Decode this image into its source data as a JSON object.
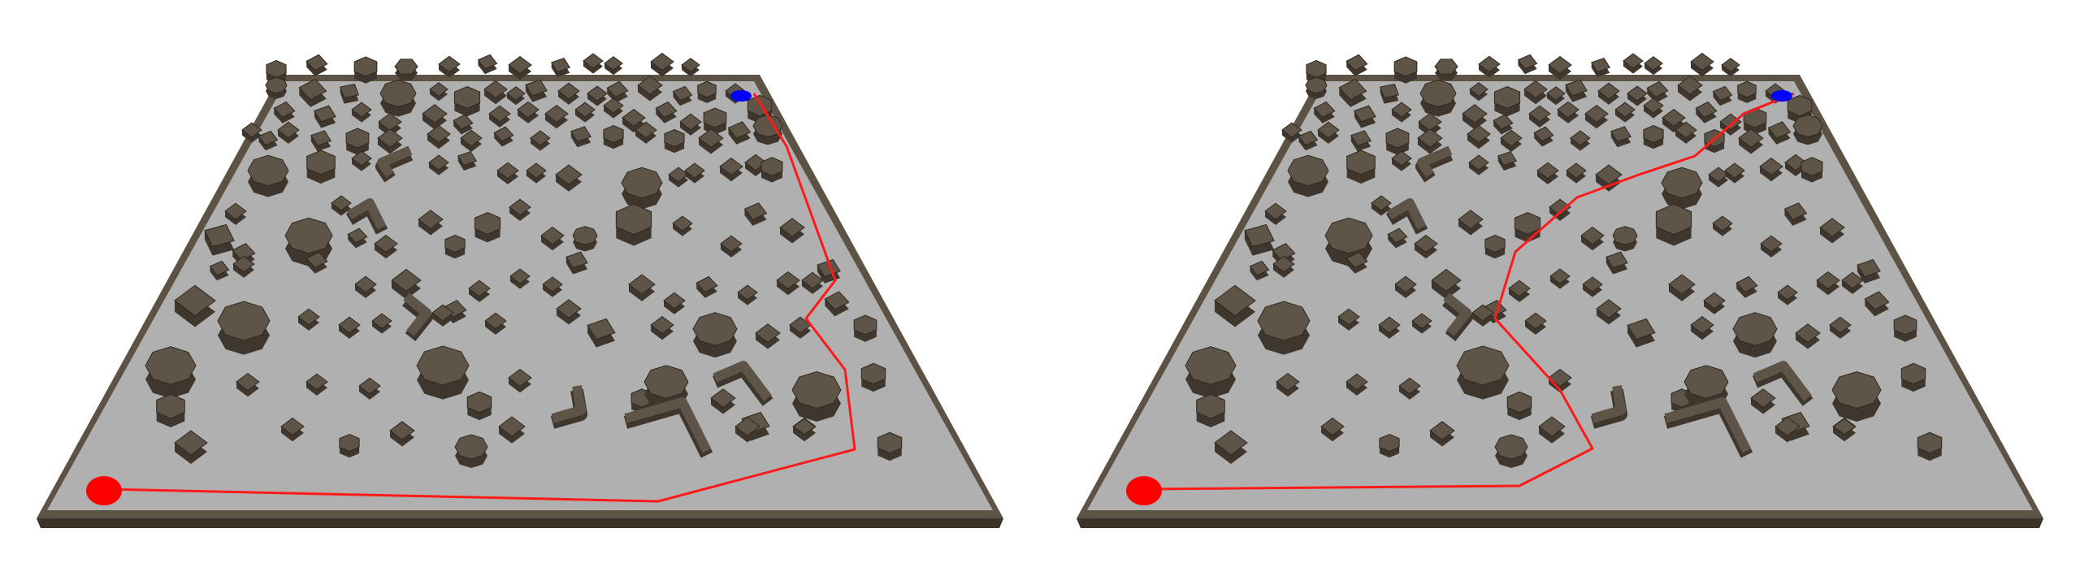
{
  "scene": {
    "description_visible_text": "",
    "colors": {
      "background": "#ffffff",
      "floor": "#b0b0b0",
      "wall": "#5c5344",
      "wall_dark": "#3a3328",
      "obstacle_top": "#5e5548",
      "obstacle_side": "#3f372d",
      "path": "#ff1a1a",
      "start_marker": "#ff0000",
      "goal_marker": "#0000ff"
    },
    "panels": [
      {
        "id": "left",
        "markers": [
          {
            "type": "start",
            "name": "start-marker"
          },
          {
            "type": "goal",
            "name": "goal-marker"
          }
        ],
        "path_label": "planned-path-a"
      },
      {
        "id": "right",
        "markers": [
          {
            "type": "start",
            "name": "start-marker"
          },
          {
            "type": "goal",
            "name": "goal-marker"
          }
        ],
        "path_label": "planned-path-b"
      }
    ]
  }
}
